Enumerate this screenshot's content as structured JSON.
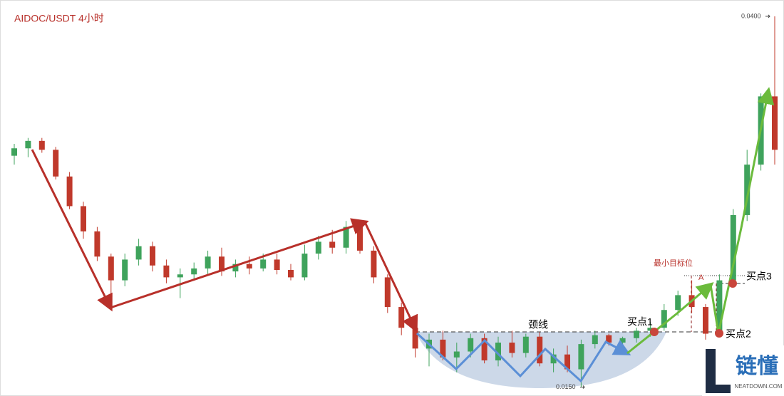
{
  "chart_data": {
    "type": "candlestick",
    "title": "AIDOC/USDT  4小时",
    "open": [
      0.0306,
      0.0311,
      0.0316,
      0.031,
      0.0292,
      0.0272,
      0.0255,
      0.0238,
      0.0222,
      0.0236,
      0.0245,
      0.0232,
      0.0224,
      0.0226,
      0.023,
      0.0238,
      0.0228,
      0.0233,
      0.023,
      0.0236,
      0.0229,
      0.0224,
      0.024,
      0.0248,
      0.0244,
      0.0258,
      0.0242,
      0.0224,
      0.0204,
      0.019,
      0.0176,
      0.0182,
      0.017,
      0.0174,
      0.0183,
      0.0168,
      0.018,
      0.0173,
      0.0184,
      0.0166,
      0.0172,
      0.0162,
      0.0179,
      0.0185,
      0.018,
      0.0183,
      0.0188,
      0.019,
      0.0202,
      0.0212,
      0.0204,
      0.0186,
      0.0222,
      0.0266,
      0.03,
      0.0346
    ],
    "high": [
      0.0314,
      0.0318,
      0.0318,
      0.0312,
      0.0295,
      0.0275,
      0.0258,
      0.024,
      0.024,
      0.025,
      0.0248,
      0.0236,
      0.023,
      0.0234,
      0.0242,
      0.0244,
      0.0236,
      0.0238,
      0.024,
      0.024,
      0.0233,
      0.0246,
      0.0252,
      0.0256,
      0.0262,
      0.0262,
      0.0245,
      0.0226,
      0.0207,
      0.0194,
      0.0186,
      0.0188,
      0.018,
      0.0186,
      0.0186,
      0.0184,
      0.0188,
      0.0186,
      0.0187,
      0.0176,
      0.0178,
      0.0182,
      0.0188,
      0.0186,
      0.0184,
      0.019,
      0.0194,
      0.0206,
      0.0215,
      0.0222,
      0.0206,
      0.0226,
      0.027,
      0.031,
      0.0348,
      0.04
    ],
    "low": [
      0.03,
      0.0305,
      0.0308,
      0.029,
      0.027,
      0.025,
      0.0235,
      0.0209,
      0.0218,
      0.0232,
      0.0228,
      0.022,
      0.021,
      0.0222,
      0.0226,
      0.0225,
      0.0224,
      0.0226,
      0.0228,
      0.0226,
      0.0222,
      0.0222,
      0.0236,
      0.024,
      0.024,
      0.024,
      0.022,
      0.02,
      0.0185,
      0.017,
      0.0164,
      0.0168,
      0.016,
      0.017,
      0.0166,
      0.0164,
      0.017,
      0.017,
      0.0164,
      0.016,
      0.016,
      0.015,
      0.0176,
      0.0178,
      0.0177,
      0.018,
      0.0184,
      0.0188,
      0.0198,
      0.02,
      0.0182,
      0.0184,
      0.022,
      0.0262,
      0.0296,
      0.03
    ],
    "close": [
      0.0311,
      0.0316,
      0.031,
      0.0292,
      0.0272,
      0.0255,
      0.0238,
      0.0222,
      0.0236,
      0.0245,
      0.0232,
      0.0224,
      0.0226,
      0.023,
      0.0238,
      0.0228,
      0.0233,
      0.023,
      0.0236,
      0.0229,
      0.0224,
      0.024,
      0.0248,
      0.0244,
      0.0258,
      0.0242,
      0.0224,
      0.0204,
      0.019,
      0.0176,
      0.0182,
      0.017,
      0.0174,
      0.0183,
      0.0168,
      0.018,
      0.0173,
      0.0184,
      0.0166,
      0.0172,
      0.0162,
      0.0179,
      0.0185,
      0.018,
      0.0183,
      0.0188,
      0.019,
      0.0202,
      0.0212,
      0.0204,
      0.0186,
      0.0222,
      0.0266,
      0.03,
      0.0346,
      0.031
    ],
    "up_color": "#3fa35c",
    "down_color": "#c0392b",
    "ylim": [
      0.0144,
      0.0411
    ],
    "price_labels": [
      {
        "value": 0.04,
        "label": "0.0400"
      },
      {
        "value": 0.015,
        "label": "0.0150"
      }
    ],
    "annotations": {
      "neckline": "颈线",
      "buy1": "买点1",
      "buy2": "买点2",
      "buy3": "买点3",
      "target": "最小目标位",
      "a": "A"
    }
  },
  "logo": {
    "name": "链懂",
    "site": "NEATDOWN.COM"
  }
}
